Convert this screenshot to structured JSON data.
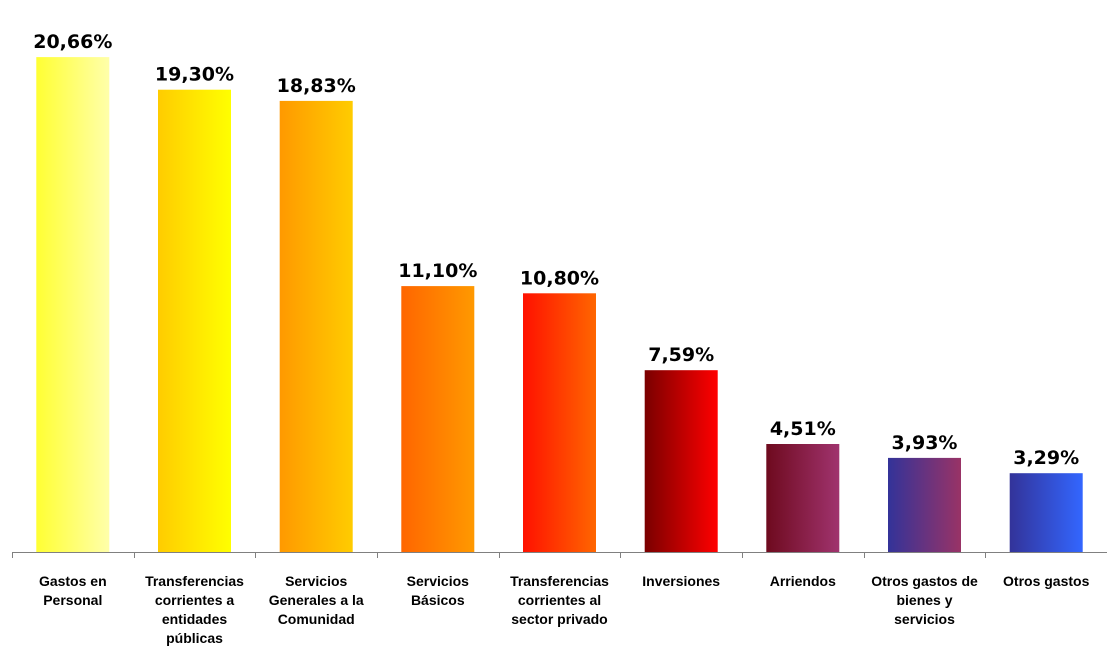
{
  "chart_data": {
    "type": "bar",
    "title": "",
    "xlabel": "",
    "ylabel": "",
    "ylim": [
      0,
      22
    ],
    "grid": false,
    "legend": "none",
    "categories": [
      [
        "Gastos en",
        "Personal"
      ],
      [
        "Transferencias",
        "corrientes a",
        "entidades",
        "públicas"
      ],
      [
        "Servicios",
        "Generales a la",
        "Comunidad"
      ],
      [
        "Servicios",
        "Básicos"
      ],
      [
        "Transferencias",
        "corrientes al",
        "sector privado"
      ],
      [
        "Inversiones"
      ],
      [
        "Arriendos"
      ],
      [
        "Otros gastos de",
        "bienes y",
        "servicios"
      ],
      [
        "Otros gastos"
      ]
    ],
    "values": [
      20.66,
      19.3,
      18.83,
      11.1,
      10.8,
      7.59,
      4.51,
      3.93,
      3.29
    ],
    "value_labels": [
      "20,66%",
      "19,30%",
      "18,83%",
      "11,10%",
      "10,80%",
      "7,59%",
      "4,51%",
      "3,93%",
      "3,29%"
    ],
    "colors": [
      [
        "#ffff33",
        "#ffffaa"
      ],
      [
        "#ffcc00",
        "#ffff00"
      ],
      [
        "#ff9900",
        "#ffcc00"
      ],
      [
        "#ff6600",
        "#ff9900"
      ],
      [
        "#ff1100",
        "#ff6600"
      ],
      [
        "#7a0000",
        "#ff0000"
      ],
      [
        "#6e0a1e",
        "#a0336e"
      ],
      [
        "#333399",
        "#993366"
      ],
      [
        "#333399",
        "#3366ff"
      ]
    ]
  }
}
